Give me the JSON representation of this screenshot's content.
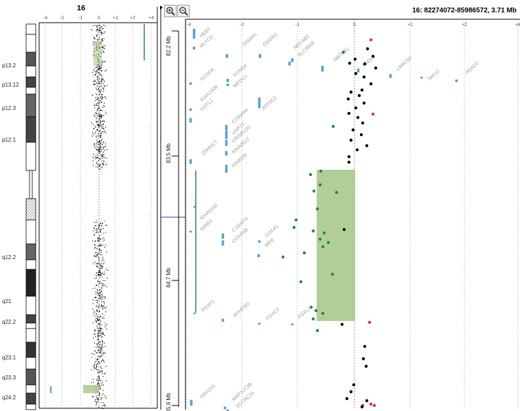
{
  "overview": {
    "chromosome": "16",
    "axis_ticks": [
      "-4",
      "-2",
      "-1",
      "0",
      "+1",
      "+2",
      "+4"
    ],
    "bands": [
      "p13.2",
      "p13.12",
      "p12.3",
      "p12.1",
      "q12.2",
      "q21",
      "q22.2",
      "q23.1",
      "q23.3",
      "q24.2"
    ]
  },
  "toolbar": {
    "zoom_in_icon": "zoom-in-icon",
    "zoom_out_icon": "zoom-out-icon"
  },
  "detail": {
    "region_label": "16: 82274072-85986572, 3.71 Mb",
    "axis_ticks": [
      "-4",
      "-2",
      "-1",
      "0",
      "+1",
      "+2",
      "+4"
    ],
    "position_ticks": [
      "82.2 Mb",
      "83.5 Mb",
      "84.7 Mb",
      "85.9 Mb"
    ],
    "genes": [
      "HEB3",
      "MLYCD",
      "OSGIN1",
      "OSGIN1",
      "NECAB2",
      "SLC38A8",
      "MBTPS1",
      "HSDL1",
      "LRRC50",
      "TAF1C",
      "ADAD2",
      "KCNG4",
      "KCNG4",
      "WFDC1",
      "KIAA1609",
      "COTL1",
      "ATP2C2",
      "C16orf44",
      "USP10",
      "CRISPLD2",
      "ZDHHC7",
      "KIAA0513",
      "FAM92B",
      "KIAA0182",
      "GINS2",
      "C16orf74",
      "COX4NB",
      "COX4I1",
      "IRF8",
      "FOXF1",
      "MTHFSD",
      "FOXC2",
      "FOXL1",
      "FBXO31",
      "MAP1LC3B",
      "ZCCHC14"
    ]
  },
  "colors": {
    "loss": "#1e8c3a",
    "gain": "#e03030",
    "neutral": "#000000",
    "segment": "#a9c98d",
    "gene": "#5aa6dc"
  }
}
